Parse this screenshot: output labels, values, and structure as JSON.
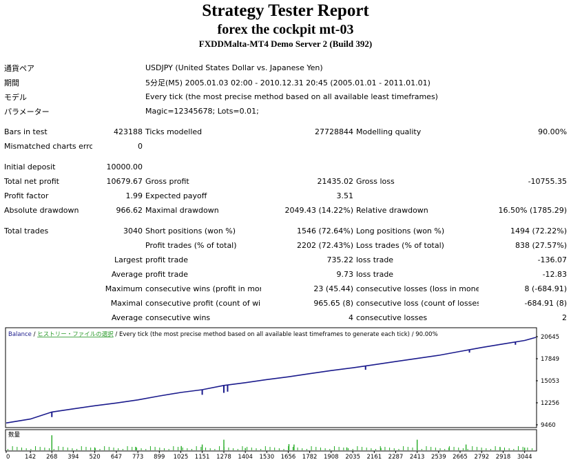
{
  "header": {
    "title": "Strategy Tester Report",
    "subtitle": "forex the cockpit mt-03",
    "server": "FXDDMalta-MT4 Demo Server 2 (Build 392)"
  },
  "info": {
    "pair_label": "通貨ペア",
    "pair_value": "USDJPY (United States Dollar vs. Japanese Yen)",
    "period_label": "期間",
    "period_value": "5分足(M5) 2005.01.03 02:00 - 2010.12.31 20:45 (2005.01.01 - 2011.01.01)",
    "model_label": "モデル",
    "model_value": "Every tick (the most precise method based on all available least timeframes)",
    "params_label": "パラメーター",
    "params_value": "Magic=12345678; Lots=0.01;"
  },
  "stats": {
    "bars_in_test_label": "Bars in test",
    "bars_in_test": "423188",
    "ticks_modelled_label": "Ticks modelled",
    "ticks_modelled": "27728844",
    "modelling_quality_label": "Modelling quality",
    "modelling_quality": "90.00%",
    "mismatched_label": "Mismatched charts errors",
    "mismatched": "0",
    "initial_deposit_label": "Initial deposit",
    "initial_deposit": "10000.00",
    "total_net_profit_label": "Total net profit",
    "total_net_profit": "10679.67",
    "gross_profit_label": "Gross profit",
    "gross_profit": "21435.02",
    "gross_loss_label": "Gross loss",
    "gross_loss": "-10755.35",
    "profit_factor_label": "Profit factor",
    "profit_factor": "1.99",
    "expected_payoff_label": "Expected payoff",
    "expected_payoff": "3.51",
    "absolute_drawdown_label": "Absolute drawdown",
    "absolute_drawdown": "966.62",
    "maximal_drawdown_label": "Maximal drawdown",
    "maximal_drawdown": "2049.43 (14.22%)",
    "relative_drawdown_label": "Relative drawdown",
    "relative_drawdown": "16.50% (1785.29)",
    "total_trades_label": "Total trades",
    "total_trades": "3040",
    "short_positions_label": "Short positions (won %)",
    "short_positions": "1546 (72.64%)",
    "long_positions_label": "Long positions (won %)",
    "long_positions": "1494 (72.22%)",
    "profit_trades_label": "Profit trades (% of total)",
    "profit_trades": "2202 (72.43%)",
    "loss_trades_label": "Loss trades (% of total)",
    "loss_trades": "838 (27.57%)",
    "largest_label": "Largest",
    "largest_profit_label": "profit trade",
    "largest_profit": "735.22",
    "largest_loss_label": "loss trade",
    "largest_loss": "-136.07",
    "average_label": "Average",
    "average_profit_label": "profit trade",
    "average_profit": "9.73",
    "average_loss_label": "loss trade",
    "average_loss": "-12.83",
    "maximum_label": "Maximum",
    "max_cons_wins_label": "consecutive wins (profit in money)",
    "max_cons_wins": "23 (45.44)",
    "max_cons_losses_label": "consecutive losses (loss in money)",
    "max_cons_losses": "8 (-684.91)",
    "maximal_label": "Maximal",
    "maximal_cons_profit_label": "consecutive profit (count of wins)",
    "maximal_cons_profit": "965.65 (8)",
    "maximal_cons_loss_label": "consecutive loss (count of losses)",
    "maximal_cons_loss": "-684.91 (8)",
    "average2_label": "Average",
    "avg_cons_wins_label": "consecutive wins",
    "avg_cons_wins": "4",
    "avg_cons_losses_label": "consecutive losses",
    "avg_cons_losses": "2"
  },
  "colors": {
    "balance_line": "#1a1a8c",
    "volume_bars": "#22aa22",
    "legend_balance": "#1a1a8c",
    "legend_history": "#2a9a2a"
  },
  "chart_data": {
    "type": "line",
    "legend": {
      "balance": "Balance",
      "separator": " / ",
      "history": "ヒストリー・ファイルの選択",
      "description": " / Every tick (the most precise method based on all available least timeframes to generate each tick) / 90.00%"
    },
    "volume_label": "数量",
    "x": [
      0,
      142,
      268,
      394,
      520,
      647,
      773,
      899,
      1025,
      1151,
      1278,
      1404,
      1530,
      1656,
      1782,
      1908,
      2035,
      2161,
      2287,
      2413,
      2539,
      2665,
      2792,
      2918,
      3044,
      3110
    ],
    "balance": [
      9700,
      10200,
      11100,
      11500,
      11900,
      12250,
      12650,
      13150,
      13600,
      13950,
      14500,
      14850,
      15250,
      15600,
      16000,
      16400,
      16750,
      17150,
      17550,
      17950,
      18350,
      18850,
      19350,
      19800,
      20250,
      20645
    ],
    "dips": [
      {
        "x": 268,
        "y": 10450
      },
      {
        "x": 1151,
        "y": 13300
      },
      {
        "x": 1278,
        "y": 13550
      },
      {
        "x": 1300,
        "y": 13700
      },
      {
        "x": 2110,
        "y": 16500
      },
      {
        "x": 2720,
        "y": 18700
      },
      {
        "x": 2990,
        "y": 19700
      }
    ],
    "x_ticks": [
      "0",
      "142",
      "268",
      "394",
      "520",
      "647",
      "773",
      "899",
      "1025",
      "1151",
      "1278",
      "1404",
      "1530",
      "1656",
      "1782",
      "1908",
      "2035",
      "2161",
      "2287",
      "2413",
      "2539",
      "2665",
      "2792",
      "2918",
      "3044"
    ],
    "y_ticks": [
      "20645",
      "17849",
      "15053",
      "12256",
      "9460"
    ],
    "ylim": [
      9460,
      20645
    ],
    "xlim": [
      0,
      3110
    ],
    "volume": [
      {
        "x": 268,
        "v": 0.78
      },
      {
        "x": 1151,
        "v": 0.3
      },
      {
        "x": 1278,
        "v": 0.55
      },
      {
        "x": 2413,
        "v": 0.55
      },
      {
        "x": 1660,
        "v": 0.32
      },
      {
        "x": 1690,
        "v": 0.3
      },
      {
        "x": 2700,
        "v": 0.3
      },
      {
        "x": 1028,
        "v": 0.22
      },
      {
        "x": 520,
        "v": 0.15
      },
      {
        "x": 760,
        "v": 0.18
      },
      {
        "x": 1404,
        "v": 0.12
      },
      {
        "x": 2000,
        "v": 0.15
      },
      {
        "x": 2200,
        "v": 0.12
      },
      {
        "x": 2600,
        "v": 0.14
      },
      {
        "x": 2900,
        "v": 0.16
      },
      {
        "x": 3044,
        "v": 0.14
      }
    ]
  }
}
